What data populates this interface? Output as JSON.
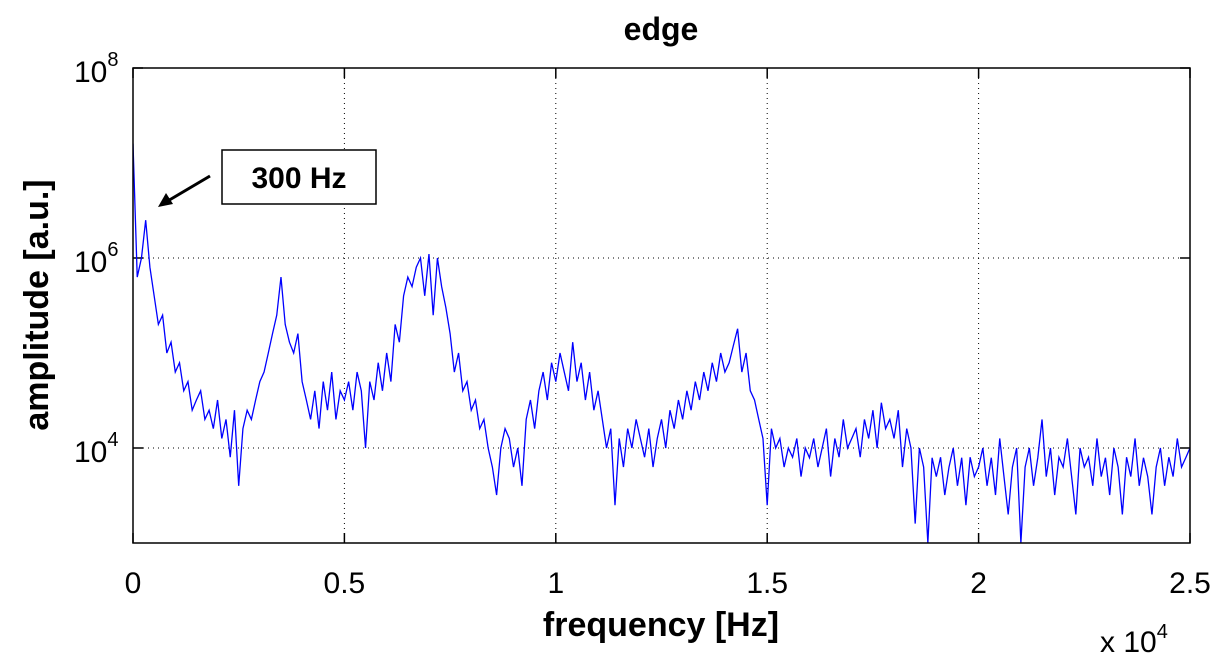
{
  "chart_data": {
    "type": "line",
    "title": "edge",
    "x_label": "frequency [Hz]",
    "y_label": "amplitude [a.u.]",
    "x_multiplier": {
      "label": "x 10",
      "exponent": "4"
    },
    "annotation": "300 Hz",
    "yscale": "log",
    "grid": true,
    "xlim": [
      0,
      25000
    ],
    "ylim": [
      1000,
      100000000
    ],
    "xticks": [
      0,
      {
        "value": 5000,
        "label": "0.5"
      },
      {
        "value": 10000,
        "label": "1"
      },
      {
        "value": 15000,
        "label": "1.5"
      },
      {
        "value": 20000,
        "label": "2"
      },
      {
        "value": 25000,
        "label": "2.5"
      }
    ],
    "yticks": [
      {
        "value": 10000,
        "label": "10",
        "exponent": "4"
      },
      {
        "value": 1000000,
        "label": "10",
        "exponent": "6"
      },
      {
        "value": 100000000,
        "label": "10",
        "exponent": "8"
      }
    ],
    "color": "#0000ff",
    "x": [
      0,
      100,
      200,
      300,
      400,
      500,
      600,
      700,
      800,
      900,
      1000,
      1100,
      1200,
      1300,
      1400,
      1500,
      1600,
      1700,
      1800,
      1900,
      2000,
      2100,
      2200,
      2300,
      2400,
      2500,
      2600,
      2700,
      2800,
      2900,
      3000,
      3100,
      3200,
      3300,
      3400,
      3500,
      3600,
      3700,
      3800,
      3900,
      4000,
      4100,
      4200,
      4300,
      4400,
      4500,
      4600,
      4700,
      4800,
      4900,
      5000,
      5100,
      5200,
      5300,
      5400,
      5500,
      5600,
      5700,
      5800,
      5900,
      6000,
      6100,
      6200,
      6300,
      6400,
      6500,
      6600,
      6700,
      6800,
      6900,
      7000,
      7100,
      7200,
      7300,
      7400,
      7500,
      7600,
      7700,
      7800,
      7900,
      8000,
      8100,
      8200,
      8300,
      8400,
      8500,
      8600,
      8700,
      8800,
      8900,
      9000,
      9100,
      9200,
      9300,
      9400,
      9500,
      9600,
      9700,
      9800,
      9900,
      10000,
      10100,
      10200,
      10300,
      10400,
      10500,
      10600,
      10700,
      10800,
      10900,
      11000,
      11100,
      11200,
      11300,
      11400,
      11500,
      11600,
      11700,
      11800,
      11900,
      12000,
      12100,
      12200,
      12300,
      12400,
      12500,
      12600,
      12700,
      12800,
      12900,
      13000,
      13100,
      13200,
      13300,
      13400,
      13500,
      13600,
      13700,
      13800,
      13900,
      14000,
      14100,
      14200,
      14300,
      14400,
      14500,
      14600,
      14700,
      14800,
      14900,
      15000,
      15100,
      15200,
      15300,
      15400,
      15500,
      15600,
      15700,
      15800,
      15900,
      16000,
      16100,
      16200,
      16300,
      16400,
      16500,
      16600,
      16700,
      16800,
      16900,
      17000,
      17100,
      17200,
      17300,
      17400,
      17500,
      17600,
      17700,
      17800,
      17900,
      18000,
      18100,
      18200,
      18300,
      18400,
      18500,
      18600,
      18700,
      18800,
      18900,
      19000,
      19100,
      19200,
      19300,
      19400,
      19500,
      19600,
      19700,
      19800,
      19900,
      20000,
      20100,
      20200,
      20300,
      20400,
      20500,
      20600,
      20700,
      20800,
      20900,
      21000,
      21100,
      21200,
      21300,
      21400,
      21500,
      21600,
      21700,
      21800,
      21900,
      22000,
      22100,
      22200,
      22300,
      22400,
      22500,
      22600,
      22700,
      22800,
      22900,
      23000,
      23100,
      23200,
      23300,
      23400,
      23500,
      23600,
      23700,
      23800,
      23900,
      24000,
      24100,
      24200,
      24300,
      24400,
      24500,
      24600,
      24700,
      24800,
      24900,
      25000
    ],
    "values": [
      16000000,
      630000,
      1000000,
      2500000,
      800000,
      400000,
      200000,
      250000,
      100000,
      130000,
      63000,
      79000,
      40000,
      50000,
      25000,
      32000,
      40000,
      20000,
      25000,
      16000,
      32000,
      12600,
      20000,
      8000,
      25000,
      4000,
      16000,
      25000,
      20000,
      32000,
      50000,
      63000,
      100000,
      160000,
      250000,
      630000,
      200000,
      130000,
      100000,
      160000,
      50000,
      32000,
      20000,
      40000,
      16000,
      50000,
      25000,
      63000,
      20000,
      40000,
      32000,
      50000,
      25000,
      63000,
      40000,
      10000,
      50000,
      32000,
      79000,
      40000,
      100000,
      50000,
      200000,
      130000,
      400000,
      630000,
      500000,
      800000,
      1000000,
      400000,
      1100000,
      250000,
      1000000,
      500000,
      300000,
      160000,
      63000,
      100000,
      40000,
      50000,
      25000,
      32000,
      16000,
      20000,
      10000,
      6300,
      3200,
      10000,
      16000,
      12600,
      6300,
      10000,
      4000,
      20000,
      32000,
      16000,
      40000,
      63000,
      32000,
      79000,
      50000,
      100000,
      63000,
      40000,
      130000,
      50000,
      79000,
      32000,
      63000,
      25000,
      40000,
      20000,
      10000,
      16000,
      2500,
      12600,
      6300,
      16000,
      10000,
      20000,
      12600,
      8000,
      16000,
      6300,
      12600,
      20000,
      10000,
      25000,
      16000,
      32000,
      20000,
      40000,
      25000,
      50000,
      32000,
      63000,
      40000,
      79000,
      50000,
      100000,
      63000,
      79000,
      120000,
      180000,
      63000,
      100000,
      40000,
      32000,
      20000,
      12600,
      2500,
      16000,
      10000,
      12600,
      6300,
      10000,
      8000,
      12600,
      5000,
      10000,
      7900,
      12600,
      6300,
      10000,
      16000,
      5000,
      12600,
      8000,
      20000,
      10000,
      12600,
      16000,
      8000,
      20000,
      12600,
      25000,
      10000,
      30000,
      16000,
      20000,
      12600,
      25000,
      6300,
      16000,
      10000,
      1600,
      10000,
      6300,
      1000,
      7900,
      5000,
      8000,
      3200,
      6300,
      10000,
      4000,
      7900,
      2500,
      8000,
      5000,
      6300,
      10000,
      4000,
      7900,
      3200,
      12600,
      5000,
      2000,
      6300,
      10000,
      1000,
      6300,
      10000,
      4000,
      7900,
      20000,
      5000,
      10000,
      3200,
      8000,
      6300,
      12600,
      5000,
      2000,
      10000,
      6300,
      8000,
      4000,
      12600,
      5000,
      7900,
      3200,
      10000,
      6300,
      2000,
      8000,
      5000,
      12600,
      4000,
      7900,
      5000,
      2000,
      6300,
      10000,
      4000,
      8000,
      5000,
      12600,
      6300,
      7900,
      10000
    ]
  }
}
